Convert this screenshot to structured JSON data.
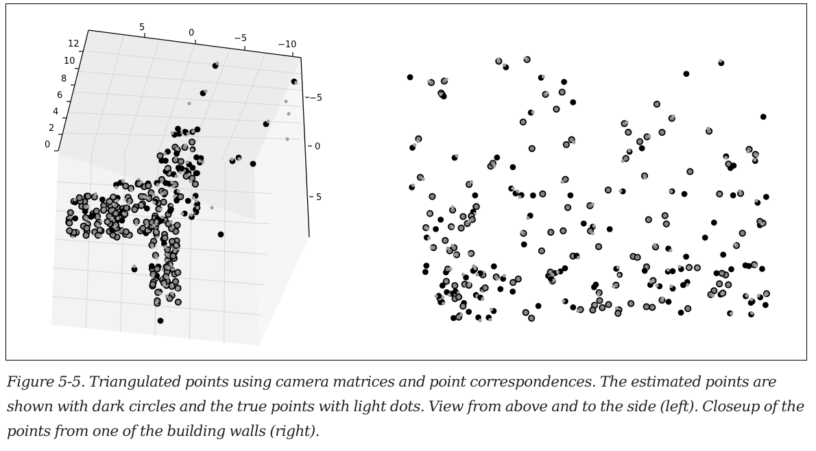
{
  "figure": {
    "caption": "Figure 5-5.  Triangulated points using camera matrices and point correspondences. The estimated points are shown with dark circles and the true points with light dots. View from above and to the side (left). Closeup of the points from one of the building walls (right).",
    "legend_semantics": {
      "estimated_points": "dark circles",
      "true_points": "light dots"
    },
    "colors": {
      "estimated": "#000000",
      "true": "#a0a0a0",
      "pane_back": "#ececec",
      "pane_side": "#f2f2f2",
      "grid": "#d4d4d4"
    }
  },
  "chart_data": [
    {
      "type": "scatter",
      "projection": "3d",
      "view": "from above and to the side",
      "z_ticks": [
        "0",
        "2",
        "4",
        "6",
        "8",
        "10",
        "12"
      ],
      "x_ticks": [
        "5",
        "0",
        "−5",
        "−10"
      ],
      "y_ticks": [
        "−5",
        "0",
        "5"
      ],
      "zlim": [
        0,
        12
      ],
      "xlim": [
        8,
        -12
      ],
      "ylim": [
        -7,
        7
      ],
      "grid": true,
      "series": [
        "estimated (dark circles)",
        "true (light dots)"
      ]
    },
    {
      "type": "scatter",
      "view": "closeup of one building wall",
      "axes": "hidden",
      "grid": false,
      "series": [
        "estimated (dark circles)",
        "true (light dots)"
      ]
    }
  ]
}
